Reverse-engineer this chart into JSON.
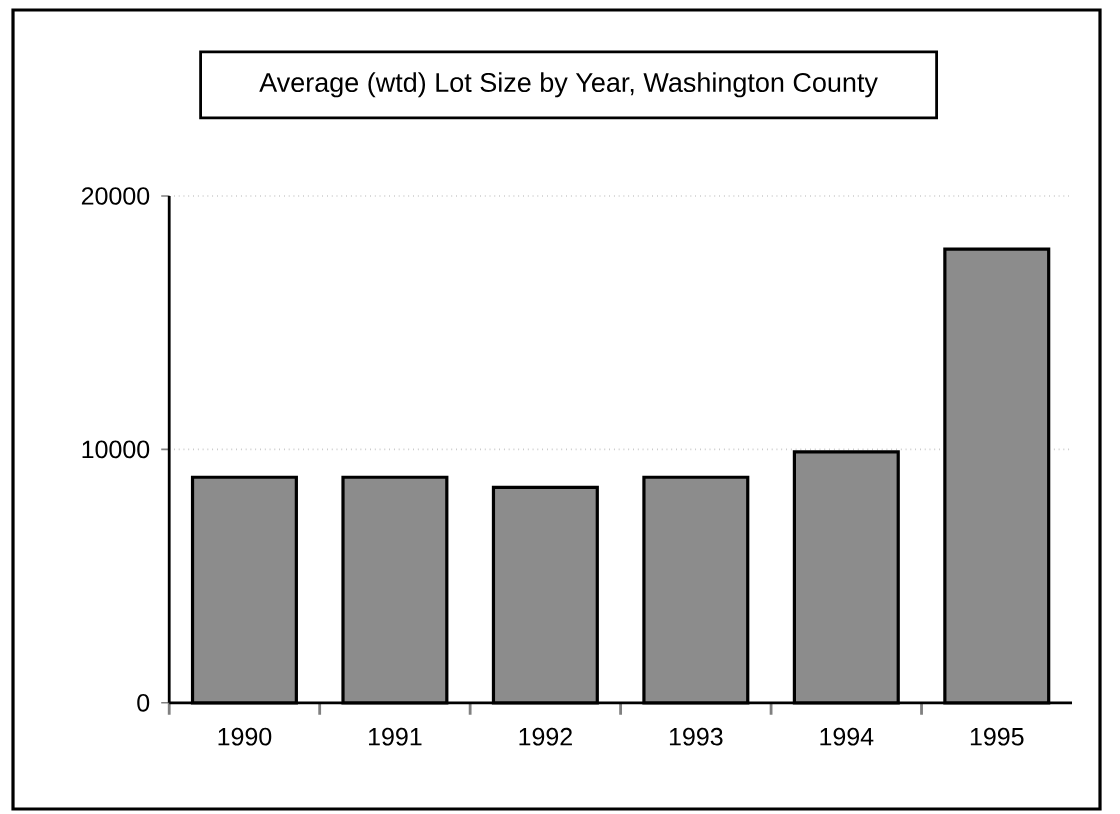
{
  "chart_data": {
    "type": "bar",
    "title": "Average (wtd) Lot Size by Year, Washington County",
    "categories": [
      "1990",
      "1991",
      "1992",
      "1993",
      "1994",
      "1995"
    ],
    "values": [
      8900,
      8900,
      8500,
      8900,
      9900,
      17900
    ],
    "color": "#8c8c8c",
    "ylim": [
      0,
      20000
    ],
    "yticks": [
      0,
      10000,
      20000
    ],
    "grid": "y"
  }
}
